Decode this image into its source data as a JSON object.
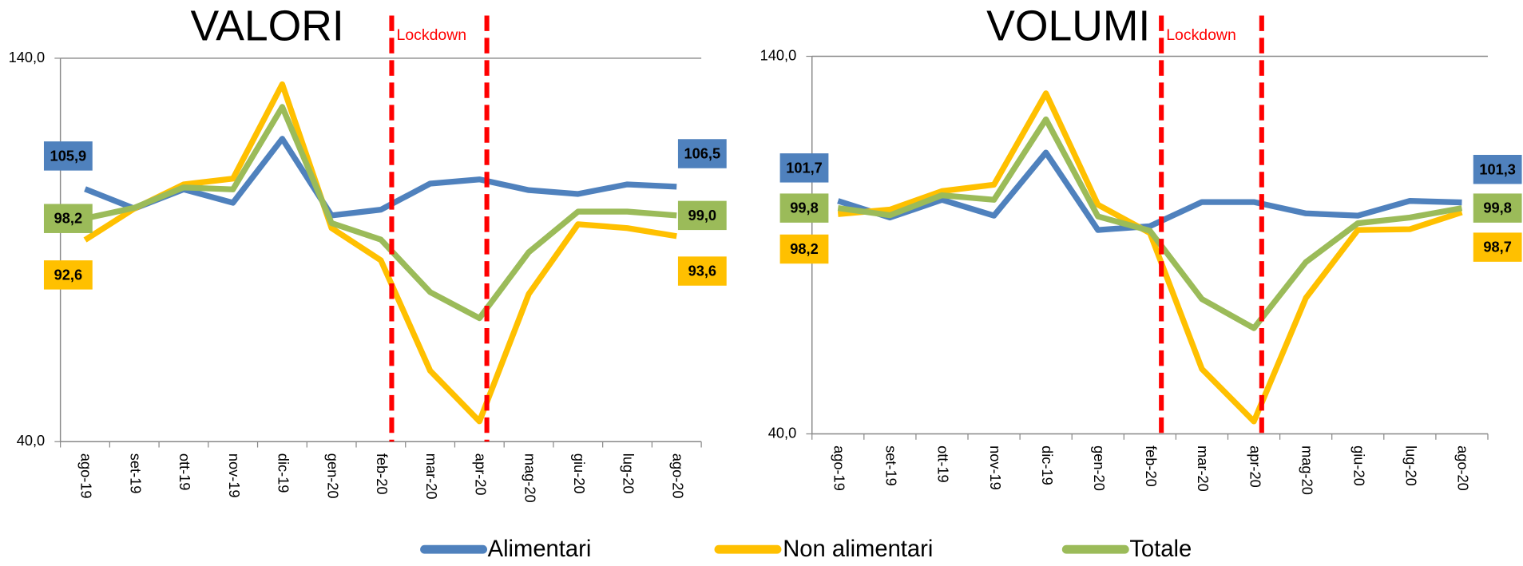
{
  "chart_data": [
    {
      "type": "line",
      "title": "VALORI",
      "annotation": "Lockdown",
      "categories": [
        "ago-19",
        "set-19",
        "ott-19",
        "nov-19",
        "dic-19",
        "gen-20",
        "feb-20",
        "mar-20",
        "apr-20",
        "mag-20",
        "giu-20",
        "lug-20",
        "ago-20"
      ],
      "ylim": [
        40,
        140
      ],
      "yticks": [
        {
          "value": 40,
          "label": "40,0"
        },
        {
          "value": 140,
          "label": "140,0"
        }
      ],
      "grid": true,
      "series": [
        {
          "name": "Alimentari",
          "color": "#4f81bd",
          "values": [
            105.9,
            100.8,
            105.8,
            102.3,
            119.0,
            99.0,
            100.5,
            107.3,
            108.4,
            105.6,
            104.6,
            107.1,
            106.5
          ],
          "value_labels": [
            "105,9",
            null,
            null,
            null,
            null,
            null,
            null,
            null,
            null,
            null,
            null,
            null,
            "106,5"
          ]
        },
        {
          "name": "Non alimentari",
          "color": "#ffc000",
          "values": [
            92.6,
            100.8,
            107.1,
            108.6,
            133.2,
            95.7,
            87.3,
            58.5,
            45.3,
            78.5,
            96.7,
            95.7,
            93.6
          ],
          "value_labels": [
            "92,6",
            null,
            null,
            null,
            null,
            null,
            null,
            null,
            null,
            null,
            null,
            null,
            "93,6"
          ]
        },
        {
          "name": "Totale",
          "color": "#9bbb59",
          "values": [
            98.2,
            101.0,
            106.3,
            105.8,
            127.3,
            97.0,
            92.7,
            79.0,
            72.2,
            89.4,
            100.0,
            100.0,
            99.0
          ],
          "value_labels": [
            "98,2",
            null,
            null,
            null,
            null,
            null,
            null,
            null,
            null,
            null,
            null,
            null,
            "99,0"
          ]
        }
      ]
    },
    {
      "type": "line",
      "title": "VOLUMI",
      "annotation": "Lockdown",
      "categories": [
        "ago-19",
        "set-19",
        "ott-19",
        "nov-19",
        "dic-19",
        "gen-20",
        "feb-20",
        "mar-20",
        "apr-20",
        "mag-20",
        "giu-20",
        "lug-20",
        "ago-20"
      ],
      "ylim": [
        40,
        140
      ],
      "yticks": [
        {
          "value": 40,
          "label": "40,0"
        },
        {
          "value": 140,
          "label": "140,0"
        }
      ],
      "grid": true,
      "series": [
        {
          "color": "#4f81bd",
          "values": [
            101.7,
            97.3,
            102.0,
            97.8,
            114.5,
            94.0,
            95.0,
            101.4,
            101.4,
            98.4,
            97.8,
            101.7,
            101.3
          ],
          "value_labels": [
            "101,7",
            null,
            null,
            null,
            null,
            null,
            null,
            null,
            null,
            null,
            null,
            null,
            "101,3"
          ]
        },
        {
          "color": "#ffc000",
          "values": [
            98.2,
            99.4,
            104.3,
            106.0,
            130.2,
            100.7,
            93.2,
            57.2,
            43.3,
            76.0,
            94.0,
            94.2,
            98.7
          ],
          "value_labels": [
            "98,2",
            null,
            null,
            null,
            null,
            null,
            null,
            null,
            null,
            null,
            null,
            null,
            "98,7"
          ]
        },
        {
          "color": "#9bbb59",
          "values": [
            99.8,
            97.9,
            103.2,
            102.0,
            123.3,
            97.6,
            93.8,
            75.7,
            68.0,
            85.5,
            95.8,
            97.3,
            99.8
          ],
          "value_labels": [
            "99,8",
            null,
            null,
            null,
            null,
            null,
            null,
            null,
            null,
            null,
            null,
            null,
            "99,8"
          ]
        }
      ]
    }
  ]
}
